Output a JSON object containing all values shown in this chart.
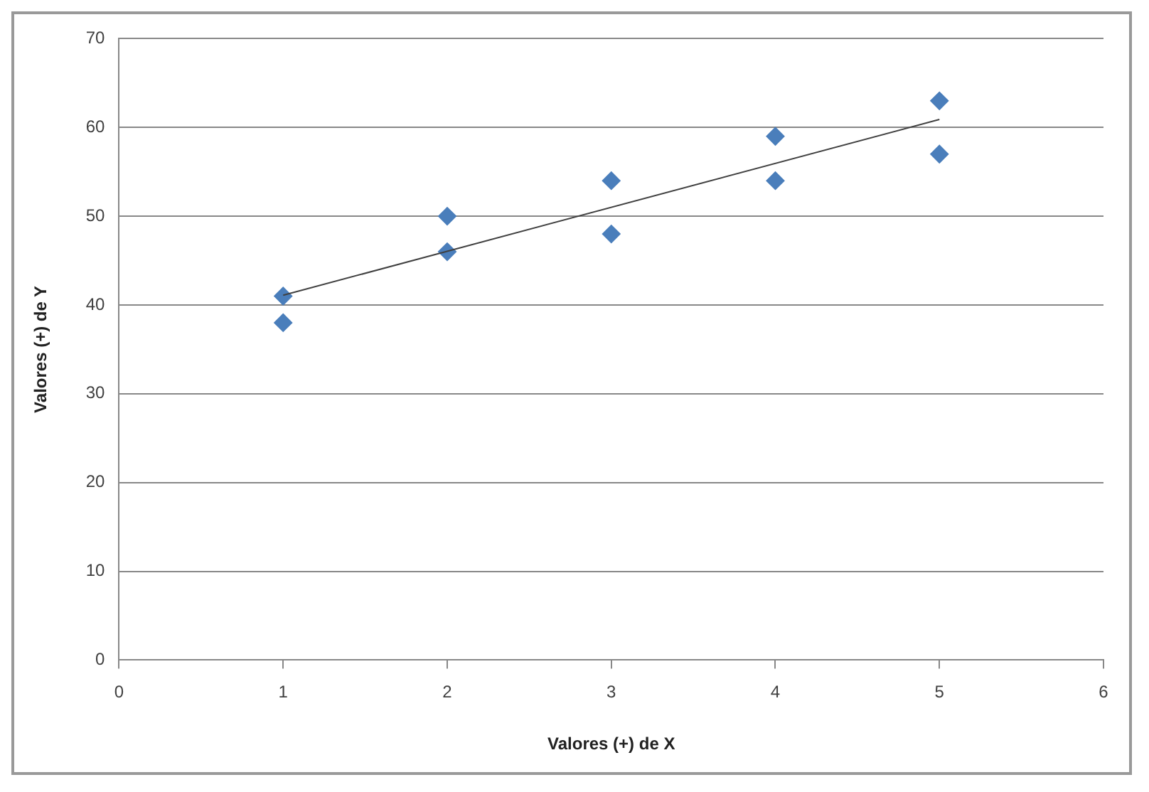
{
  "chart_data": {
    "type": "scatter",
    "xlabel": "Valores (+) de X",
    "ylabel": "Valores (+) de Y",
    "xlim": [
      0,
      6
    ],
    "xticks": [
      0,
      1,
      2,
      3,
      4,
      5,
      6
    ],
    "ylim": [
      0,
      70
    ],
    "yticks": [
      0,
      10,
      20,
      30,
      40,
      50,
      60,
      70
    ],
    "grid": "y",
    "legend": false,
    "series": [
      {
        "marker": "diamond",
        "color": "#4a7ebb",
        "x": [
          1,
          1,
          2,
          2,
          3,
          3,
          4,
          4,
          5,
          5
        ],
        "values": [
          41,
          38,
          50,
          46,
          54,
          48,
          59,
          54,
          63,
          57
        ]
      },
      {
        "type": "line",
        "marker": "none",
        "color": "#404040",
        "x": [
          1,
          5
        ],
        "values": [
          41.1,
          60.9
        ]
      }
    ]
  }
}
